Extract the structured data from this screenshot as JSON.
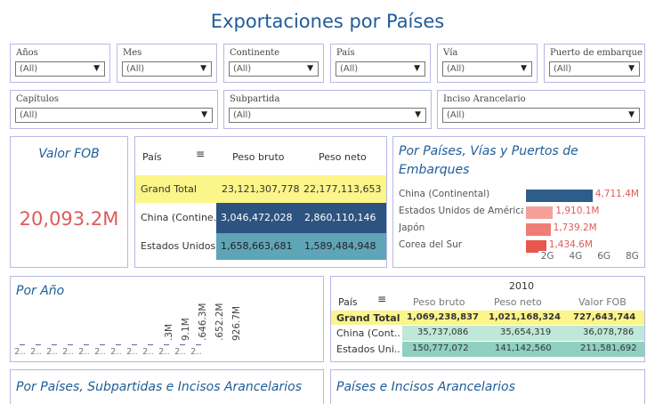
{
  "page_title": "Exportaciones por Países",
  "filters_row1": [
    {
      "label": "Años",
      "value": "(All)"
    },
    {
      "label": "Mes",
      "value": "(All)"
    },
    {
      "label": "Continente",
      "value": "(All)"
    },
    {
      "label": "País",
      "value": "(All)"
    },
    {
      "label": "Vía",
      "value": "(All)"
    },
    {
      "label": "Puerto de embarque",
      "value": "(All)"
    }
  ],
  "filters_row2": [
    {
      "label": "Capítulos",
      "value": "(All)"
    },
    {
      "label": "Subpartida",
      "value": "(All)"
    },
    {
      "label": "Inciso Arancelario",
      "value": "(All)"
    }
  ],
  "kpi": {
    "title": "Valor FOB",
    "value": "20,093.2M"
  },
  "summary_table": {
    "headers": [
      "País",
      "Peso bruto",
      "Peso neto"
    ],
    "rows": [
      {
        "pais": "Grand Total",
        "bruto": "23,121,307,778",
        "neto": "22,177,113,653"
      },
      {
        "pais": "China (Contine..",
        "bruto": "3,046,472,028",
        "neto": "2,860,110,146"
      },
      {
        "pais": "Estados Unidos..",
        "bruto": "1,658,663,681",
        "neto": "1,589,484,948"
      }
    ]
  },
  "countries_chart": {
    "title_line1": "Por Países, Vías y Puertos de",
    "title_line2": "Embarques",
    "chart_data": {
      "type": "bar",
      "categories": [
        "China (Continental)",
        "Estados Unidos de América",
        "Japón",
        "Corea del Sur"
      ],
      "values": [
        4711.4,
        1910.1,
        1739.2,
        1434.6
      ],
      "value_labels": [
        "4,711.4M",
        "1,910.1M",
        "1,739.2M",
        "1,434.6M"
      ],
      "xticks": [
        "2G",
        "4G",
        "6G",
        "8G"
      ],
      "xlim": [
        0,
        8000
      ],
      "colors": [
        "#2e5d8c",
        "#f4a099",
        "#ef7d74",
        "#e8574c"
      ]
    }
  },
  "year_chart": {
    "title": "Por Año",
    "bar_labels": [
      ".3M",
      "9.1M",
      ".646.3M",
      ".652.2M",
      "926.7M"
    ],
    "x_labels": [
      "2..",
      "2..",
      "2..",
      "2..",
      "2..",
      "2..",
      "2..",
      "2..",
      "2..",
      "2..",
      "2..",
      "2.."
    ]
  },
  "year_table": {
    "year": "2010",
    "headers": [
      "País",
      "Peso bruto",
      "Peso neto",
      "Valor FOB"
    ],
    "rows": [
      {
        "pais": "Grand Total",
        "bruto": "1,069,238,837",
        "neto": "1,021,168,324",
        "fob": "727,643,744"
      },
      {
        "pais": "China (Cont..",
        "bruto": "35,737,086",
        "neto": "35,654,319",
        "fob": "36,078,786"
      },
      {
        "pais": "Estados Uni..",
        "bruto": "150,777,072",
        "neto": "141,142,560",
        "fob": "211,581,692"
      }
    ]
  },
  "bottom_panels": {
    "left_title": "Por Países, Subpartidas  e Incisos Arancelarios",
    "right_title": "Países e Incisos Arancelarios"
  }
}
